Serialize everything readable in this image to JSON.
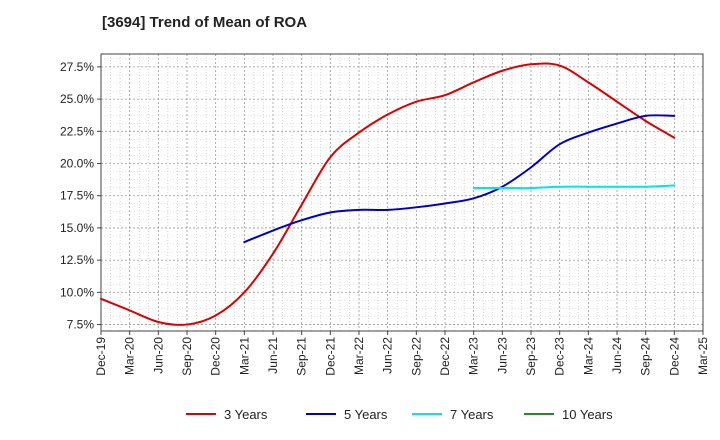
{
  "chart_data": {
    "type": "line",
    "title": "[3694]  Trend of Mean of ROA",
    "xlabel": "",
    "ylabel": "",
    "ylim": [
      7.0,
      28.5
    ],
    "y_ticks": [
      "7.5%",
      "10.0%",
      "12.5%",
      "15.0%",
      "17.5%",
      "20.0%",
      "22.5%",
      "25.0%",
      "27.5%"
    ],
    "y_tick_values": [
      7.5,
      10.0,
      12.5,
      15.0,
      17.5,
      20.0,
      22.5,
      25.0,
      27.5
    ],
    "x_ticks": [
      "Dec-19",
      "Mar-20",
      "Jun-20",
      "Sep-20",
      "Dec-20",
      "Mar-21",
      "Jun-21",
      "Sep-21",
      "Dec-21",
      "Mar-22",
      "Jun-22",
      "Sep-22",
      "Dec-22",
      "Mar-23",
      "Jun-23",
      "Sep-23",
      "Dec-23",
      "Mar-24",
      "Jun-24",
      "Sep-24",
      "Dec-24",
      "Mar-25"
    ],
    "grid": true,
    "legend_position": "bottom",
    "series": [
      {
        "name": "3 Years",
        "color": "#dd0000",
        "x": [
          "Dec-19",
          "Mar-20",
          "Jun-20",
          "Sep-20",
          "Dec-20",
          "Mar-21",
          "Jun-21",
          "Sep-21",
          "Dec-21",
          "Mar-22",
          "Jun-22",
          "Sep-22",
          "Dec-22",
          "Mar-23",
          "Jun-23",
          "Sep-23",
          "Dec-23",
          "Mar-24",
          "Jun-24",
          "Sep-24",
          "Dec-24"
        ],
        "values": [
          9.5,
          8.6,
          7.7,
          7.5,
          8.2,
          10.0,
          13.0,
          16.8,
          20.5,
          22.4,
          23.8,
          24.8,
          25.3,
          26.3,
          27.2,
          27.7,
          27.6,
          26.3,
          24.8,
          23.3,
          22.0
        ]
      },
      {
        "name": "5 Years",
        "color": "#0000cc",
        "x": [
          "Mar-21",
          "Jun-21",
          "Sep-21",
          "Dec-21",
          "Mar-22",
          "Jun-22",
          "Sep-22",
          "Dec-22",
          "Mar-23",
          "Jun-23",
          "Sep-23",
          "Dec-23",
          "Mar-24",
          "Jun-24",
          "Sep-24",
          "Dec-24"
        ],
        "values": [
          13.9,
          14.8,
          15.6,
          16.2,
          16.4,
          16.4,
          16.6,
          16.9,
          17.3,
          18.2,
          19.7,
          21.5,
          22.4,
          23.1,
          23.7,
          23.7
        ]
      },
      {
        "name": "7 Years",
        "color": "#00e5ee",
        "x": [
          "Mar-23",
          "Jun-23",
          "Sep-23",
          "Dec-23",
          "Mar-24",
          "Jun-24",
          "Sep-24",
          "Dec-24"
        ],
        "values": [
          18.1,
          18.1,
          18.1,
          18.2,
          18.2,
          18.2,
          18.2,
          18.3
        ]
      },
      {
        "name": "10 Years",
        "color": "#228b22",
        "x": [],
        "values": []
      }
    ]
  }
}
